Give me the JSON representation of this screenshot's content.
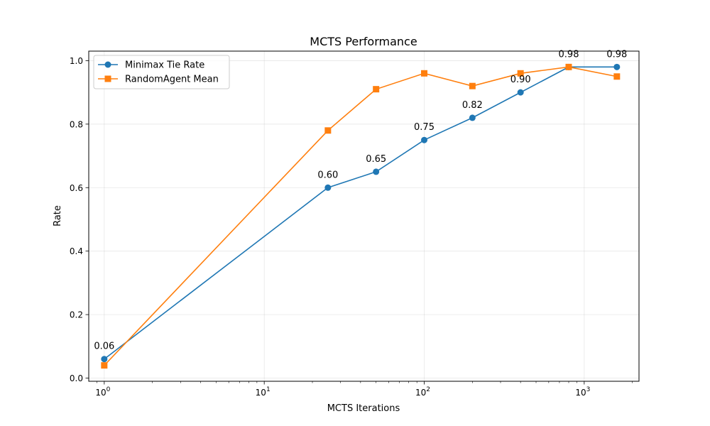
{
  "chart_data": {
    "type": "line",
    "title": "MCTS Performance",
    "xlabel": "MCTS Iterations",
    "ylabel": "Rate",
    "xscale": "log",
    "xlim": [
      0.8,
      2200
    ],
    "ylim": [
      -0.01,
      1.03
    ],
    "grid": true,
    "legend_position": "top-left",
    "x_ticks": [
      {
        "value": 1,
        "base": "10",
        "exp": "0"
      },
      {
        "value": 10,
        "base": "10",
        "exp": "1"
      },
      {
        "value": 100,
        "base": "10",
        "exp": "2"
      },
      {
        "value": 1000,
        "base": "10",
        "exp": "3"
      }
    ],
    "y_ticks": [
      {
        "value": 0.0,
        "label": "0.0"
      },
      {
        "value": 0.2,
        "label": "0.2"
      },
      {
        "value": 0.4,
        "label": "0.4"
      },
      {
        "value": 0.6,
        "label": "0.6"
      },
      {
        "value": 0.8,
        "label": "0.8"
      },
      {
        "value": 1.0,
        "label": "1.0"
      }
    ],
    "series": [
      {
        "name": "Minimax Tie Rate",
        "color": "#1f77b4",
        "marker": "circle",
        "x": [
          1,
          25,
          50,
          100,
          200,
          400,
          800,
          1600
        ],
        "y": [
          0.06,
          0.6,
          0.65,
          0.75,
          0.82,
          0.9,
          0.98,
          0.98
        ],
        "labels": [
          "0.06",
          "0.60",
          "0.65",
          "0.75",
          "0.82",
          "0.90",
          "0.98",
          "0.98"
        ]
      },
      {
        "name": "RandomAgent Mean",
        "color": "#ff7f0e",
        "marker": "square",
        "x": [
          1,
          25,
          50,
          100,
          200,
          400,
          800,
          1600
        ],
        "y": [
          0.04,
          0.78,
          0.91,
          0.96,
          0.92,
          0.96,
          0.98,
          0.95
        ]
      }
    ]
  }
}
